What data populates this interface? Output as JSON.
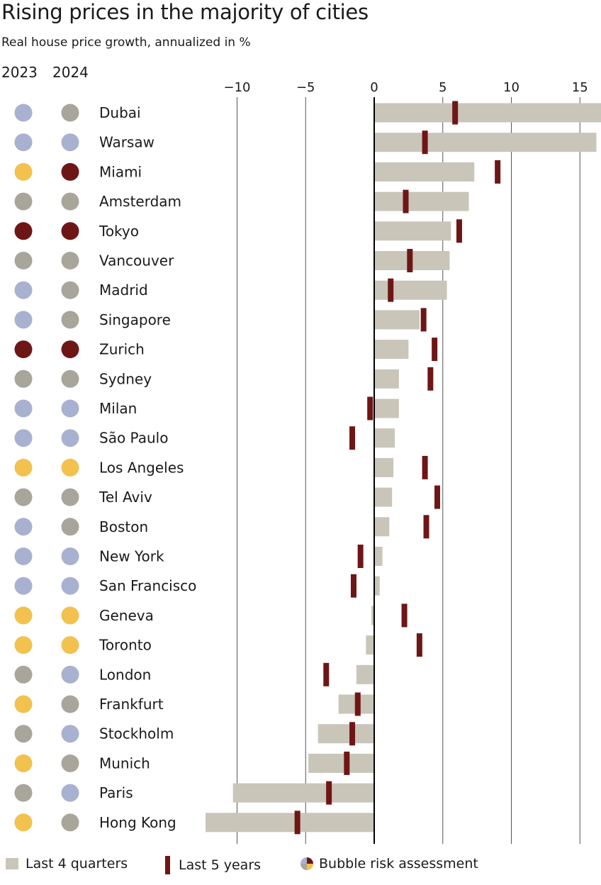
{
  "chart_data": {
    "type": "bar",
    "title": "Rising prices in the majority of cities",
    "subtitle": "Real house price growth, annualized in %",
    "risk_headers": [
      "2023",
      "2024"
    ],
    "x_ticks": [
      -10,
      -5,
      0,
      5,
      10,
      15
    ],
    "xlim": [
      -12.5,
      16.5
    ],
    "grid": true,
    "legend_position": "bottom",
    "risk_colors": {
      "blue": "#a9b1d0",
      "grey": "#a8a69a",
      "yellow": "#f2c14e",
      "red": "#6e1616"
    },
    "bar_color": "#c9c5b9",
    "tick_color": "#6e1616",
    "categories": [
      "Dubai",
      "Warsaw",
      "Miami",
      "Amsterdam",
      "Tokyo",
      "Vancouver",
      "Madrid",
      "Singapore",
      "Zurich",
      "Sydney",
      "Milan",
      "São Paulo",
      "Los Angeles",
      "Tel Aviv",
      "Boston",
      "New York",
      "San Francisco",
      "Geneva",
      "Toronto",
      "London",
      "Frankfurt",
      "Stockholm",
      "Munich",
      "Paris",
      "Hong Kong"
    ],
    "series": [
      {
        "name": "Last 4 quarters",
        "values": [
          16.7,
          16.2,
          7.3,
          6.9,
          5.6,
          5.5,
          5.3,
          3.3,
          2.5,
          1.8,
          1.8,
          1.5,
          1.4,
          1.3,
          1.1,
          0.6,
          0.4,
          -0.2,
          -0.6,
          -1.3,
          -2.6,
          -4.1,
          -4.8,
          -10.3,
          -12.3
        ]
      },
      {
        "name": "Last 5 years",
        "values": [
          5.9,
          3.7,
          9.0,
          2.3,
          6.2,
          2.6,
          1.2,
          3.6,
          4.4,
          4.1,
          -0.3,
          -1.6,
          3.7,
          4.6,
          3.8,
          -1.0,
          -1.5,
          2.2,
          3.3,
          -3.5,
          -1.2,
          -1.6,
          -2.0,
          -3.3,
          -5.6
        ]
      }
    ],
    "risk_2023": [
      "blue",
      "blue",
      "yellow",
      "grey",
      "red",
      "grey",
      "blue",
      "blue",
      "red",
      "grey",
      "blue",
      "blue",
      "yellow",
      "grey",
      "blue",
      "blue",
      "blue",
      "yellow",
      "yellow",
      "grey",
      "yellow",
      "grey",
      "yellow",
      "grey",
      "yellow"
    ],
    "risk_2024": [
      "grey",
      "blue",
      "red",
      "grey",
      "red",
      "grey",
      "grey",
      "grey",
      "red",
      "grey",
      "blue",
      "blue",
      "yellow",
      "grey",
      "grey",
      "blue",
      "blue",
      "yellow",
      "yellow",
      "blue",
      "grey",
      "blue",
      "grey",
      "blue",
      "grey"
    ],
    "legend": {
      "bar_label": "Last 4 quarters",
      "tick_label": "Last 5 years",
      "bubble_label": "Bubble risk assessment"
    }
  }
}
